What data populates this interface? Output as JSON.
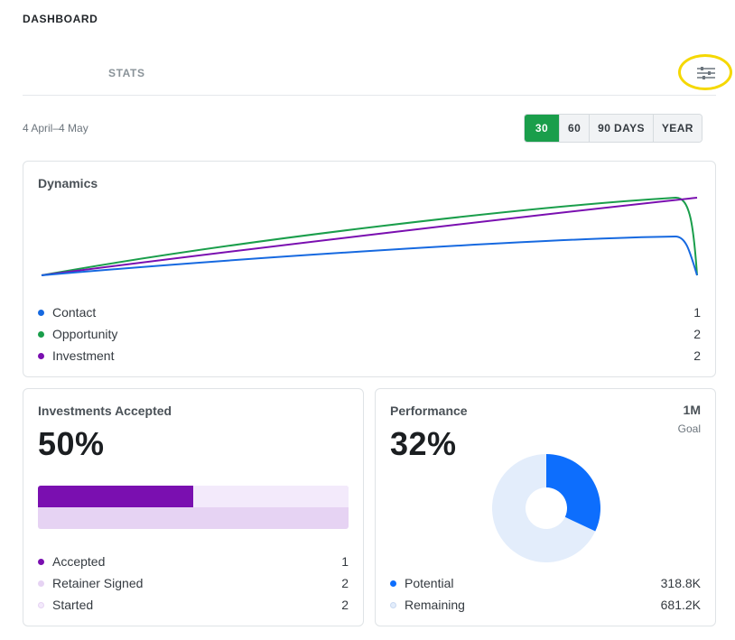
{
  "header": {
    "title": "DASHBOARD"
  },
  "tabs": {
    "stats_label": "STATS"
  },
  "filter": {
    "icon": "sliders-icon",
    "highlight_color": "#f5d800"
  },
  "date_range": "4 April–4 May",
  "range_options": [
    {
      "label": "30",
      "active": true
    },
    {
      "label": "60",
      "active": false
    },
    {
      "label": "90 DAYS",
      "active": false
    },
    {
      "label": "YEAR",
      "active": false
    }
  ],
  "colors": {
    "contact": "#1669e0",
    "opportunity": "#1a9e4b",
    "investment": "#7a0fb0",
    "active_range": "#1a9e4b",
    "accepted": "#7a0fb0",
    "retainer_signed": "#e6d3f3",
    "started": "#f3eafb",
    "potential": "#0d6efd",
    "remaining": "#e3edfb"
  },
  "dynamics": {
    "title": "Dynamics",
    "legend": [
      {
        "label": "Contact",
        "value": "1",
        "color": "#1669e0"
      },
      {
        "label": "Opportunity",
        "value": "2",
        "color": "#1a9e4b"
      },
      {
        "label": "Investment",
        "value": "2",
        "color": "#7a0fb0"
      }
    ]
  },
  "investments": {
    "title": "Investments Accepted",
    "percent": "50%",
    "progress": {
      "accepted": 0.5
    },
    "legend": [
      {
        "label": "Accepted",
        "value": "1",
        "color": "#7a0fb0"
      },
      {
        "label": "Retainer Signed",
        "value": "2",
        "color": "#e6d3f3"
      },
      {
        "label": "Started",
        "value": "2",
        "color": "#f3eafb"
      }
    ]
  },
  "performance": {
    "title": "Performance",
    "percent": "32%",
    "goal_value": "1M",
    "goal_label": "Goal",
    "potential_fraction": 0.32,
    "legend": [
      {
        "label": "Potential",
        "value": "318.8K",
        "color": "#0d6efd"
      },
      {
        "label": "Remaining",
        "value": "681.2K",
        "color": "#e3edfb"
      }
    ]
  }
}
